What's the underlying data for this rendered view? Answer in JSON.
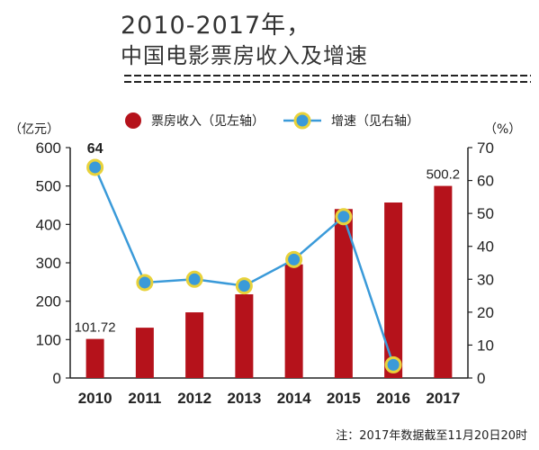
{
  "title_line1": "2010-2017年，",
  "title_line2": "中国电影票房收入及增速",
  "chart_data": {
    "type": "bar+line",
    "categories": [
      "2010",
      "2011",
      "2012",
      "2013",
      "2014",
      "2015",
      "2016",
      "2017"
    ],
    "series": [
      {
        "name": "票房收入（见左轴）",
        "kind": "bar",
        "axis": "left",
        "values": [
          101.72,
          131,
          171,
          218,
          296,
          440,
          457,
          500.2
        ],
        "color": "#b5121b"
      },
      {
        "name": "增速（见右轴）",
        "kind": "line",
        "axis": "right",
        "values": [
          64,
          29,
          30,
          28,
          36,
          49,
          4,
          null
        ],
        "color": "#3a9ad9",
        "marker_fill": "#3a9ad9",
        "marker_ring": "#e8d23a"
      }
    ],
    "left_axis": {
      "unit": "（亿元）",
      "ylim": [
        0,
        600
      ],
      "ticks": [
        "0",
        "100",
        "200",
        "300",
        "400",
        "500",
        "600"
      ]
    },
    "right_axis": {
      "unit": "（%）",
      "ylim": [
        0,
        70
      ],
      "ticks": [
        "0",
        "10",
        "20",
        "30",
        "40",
        "50",
        "60",
        "70"
      ]
    },
    "annotations": [
      {
        "text": "64",
        "series": 1,
        "index": 0
      },
      {
        "text": "101.72",
        "series": 0,
        "index": 0
      },
      {
        "text": "500.2",
        "series": 0,
        "index": 7
      }
    ],
    "legend_position": "top",
    "grid": false
  },
  "footnote": "注：2017年数据截至11月20日20时"
}
